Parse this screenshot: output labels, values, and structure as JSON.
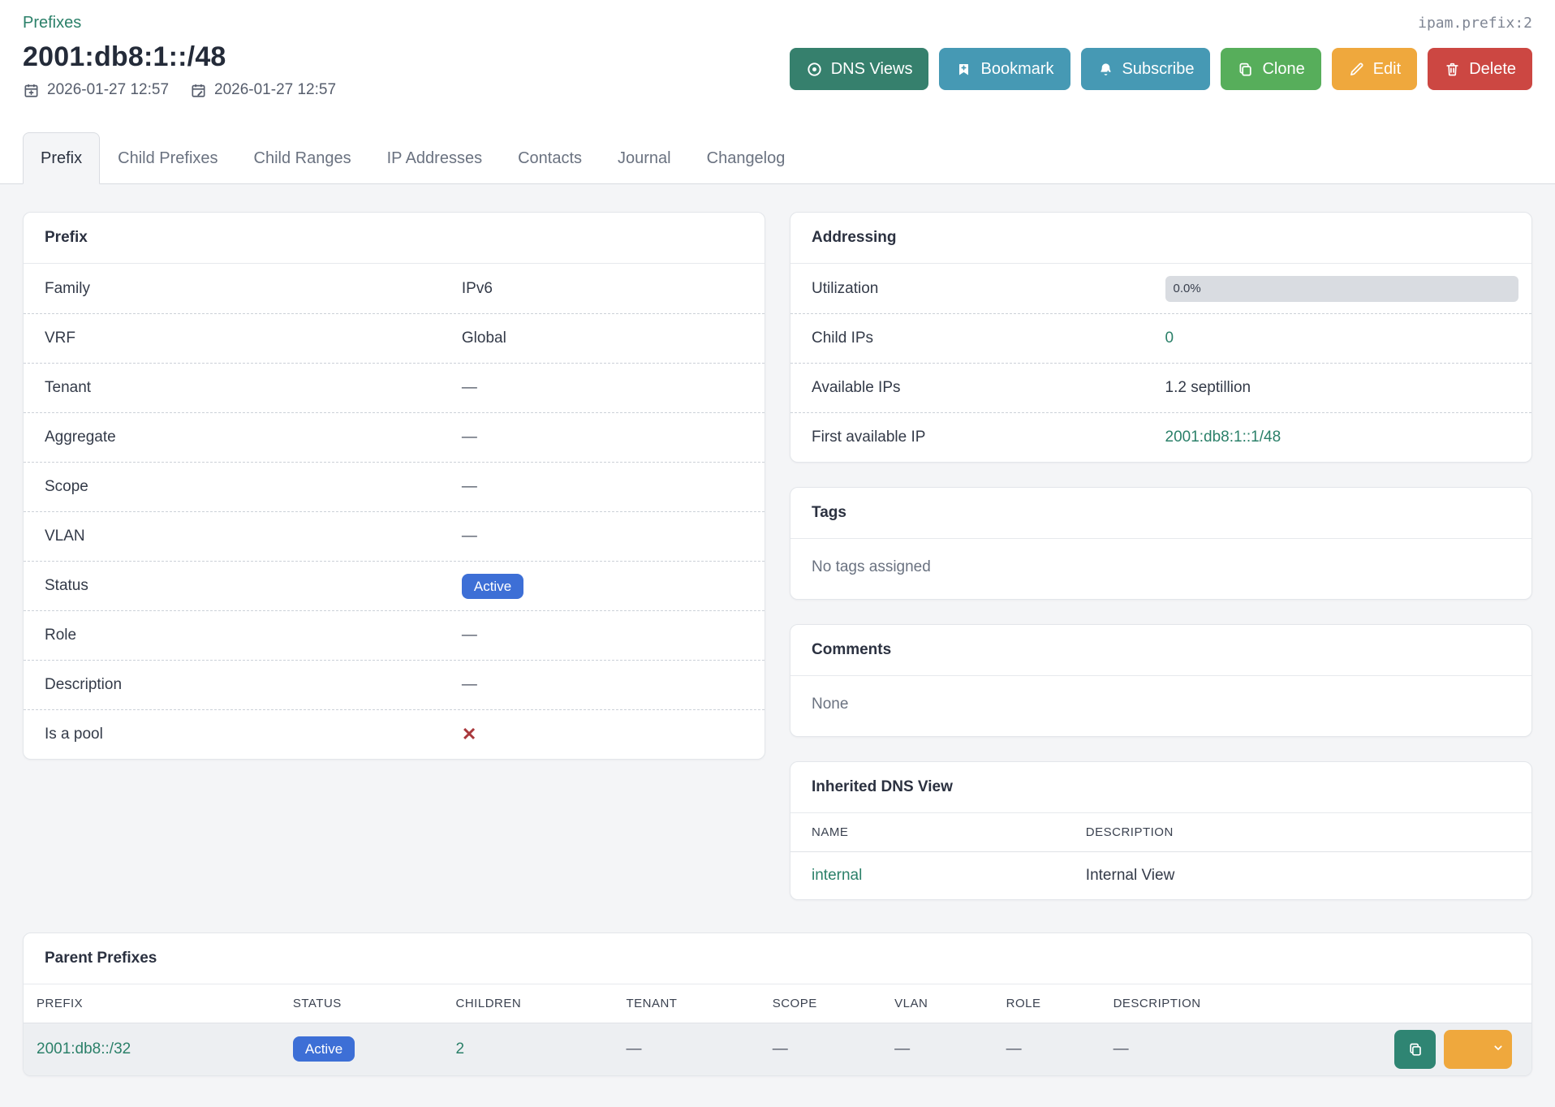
{
  "colors": {
    "link": "#2b8069",
    "active_badge": "#3d6fd6",
    "false_mark": "#a9383c"
  },
  "header": {
    "breadcrumb": "Prefixes",
    "title": "2001:db8:1::/48",
    "object_id": "ipam.prefix:2",
    "created": "2026-01-27 12:57",
    "updated": "2026-01-27 12:57",
    "buttons": [
      {
        "label": "DNS Views",
        "icon": "eye",
        "color": "#36806d"
      },
      {
        "label": "Bookmark",
        "icon": "bookmark-plus",
        "color": "#4699b4"
      },
      {
        "label": "Subscribe",
        "icon": "bell-plus",
        "color": "#4699b4"
      },
      {
        "label": "Clone",
        "icon": "copy",
        "color": "#57ae5b"
      },
      {
        "label": "Edit",
        "icon": "pencil",
        "color": "#efa83d"
      },
      {
        "label": "Delete",
        "icon": "trash",
        "color": "#cc4742"
      }
    ]
  },
  "tabs": [
    {
      "label": "Prefix",
      "active": true
    },
    {
      "label": "Child Prefixes",
      "active": false
    },
    {
      "label": "Child Ranges",
      "active": false
    },
    {
      "label": "IP Addresses",
      "active": false
    },
    {
      "label": "Contacts",
      "active": false
    },
    {
      "label": "Journal",
      "active": false
    },
    {
      "label": "Changelog",
      "active": false
    }
  ],
  "cards": {
    "prefix": {
      "title": "Prefix",
      "rows": [
        {
          "label": "Family",
          "type": "text",
          "value": "IPv6"
        },
        {
          "label": "VRF",
          "type": "text",
          "value": "Global"
        },
        {
          "label": "Tenant",
          "type": "dash",
          "value": "—"
        },
        {
          "label": "Aggregate",
          "type": "dash",
          "value": "—"
        },
        {
          "label": "Scope",
          "type": "dash",
          "value": "—"
        },
        {
          "label": "VLAN",
          "type": "dash",
          "value": "—"
        },
        {
          "label": "Status",
          "type": "badge",
          "value": "Active"
        },
        {
          "label": "Role",
          "type": "dash",
          "value": "—"
        },
        {
          "label": "Description",
          "type": "dash",
          "value": "—"
        },
        {
          "label": "Is a pool",
          "type": "false-mark",
          "value": "✕"
        }
      ]
    },
    "addressing": {
      "title": "Addressing",
      "rows": [
        {
          "label": "Utilization",
          "type": "progress",
          "value": "0.0%",
          "percent": 0
        },
        {
          "label": "Child IPs",
          "type": "link",
          "value": "0"
        },
        {
          "label": "Available IPs",
          "type": "text",
          "value": "1.2 septillion"
        },
        {
          "label": "First available IP",
          "type": "link",
          "value": "2001:db8:1::1/48"
        }
      ]
    },
    "tags": {
      "title": "Tags",
      "empty_text": "No tags assigned"
    },
    "comments": {
      "title": "Comments",
      "empty_text": "None"
    },
    "inherited_dns_view": {
      "title": "Inherited DNS View",
      "columns": [
        "NAME",
        "DESCRIPTION"
      ],
      "rows": [
        {
          "name": "internal",
          "description": "Internal View"
        }
      ]
    },
    "parent_prefixes": {
      "title": "Parent Prefixes",
      "columns": [
        "PREFIX",
        "STATUS",
        "CHILDREN",
        "TENANT",
        "SCOPE",
        "VLAN",
        "ROLE",
        "DESCRIPTION",
        ""
      ],
      "rows": [
        {
          "cells": [
            {
              "type": "link",
              "value": "2001:db8::/32",
              "name": "parent-prefix-link"
            },
            {
              "type": "badge",
              "value": "Active"
            },
            {
              "type": "link",
              "value": "2",
              "name": "children-count-link"
            },
            {
              "type": "dash",
              "value": "—"
            },
            {
              "type": "dash",
              "value": "—"
            },
            {
              "type": "dash",
              "value": "—"
            },
            {
              "type": "dash",
              "value": "—"
            },
            {
              "type": "dash",
              "value": "—"
            },
            {
              "type": "actions"
            }
          ]
        }
      ],
      "row_actions": [
        {
          "name": "clone",
          "icon": "copy",
          "color": "#2f8573",
          "split": false
        },
        {
          "name": "edit",
          "icon": "pencil",
          "color": "#efa83d",
          "split": true,
          "caret_icon": "chevron-down"
        }
      ]
    }
  }
}
